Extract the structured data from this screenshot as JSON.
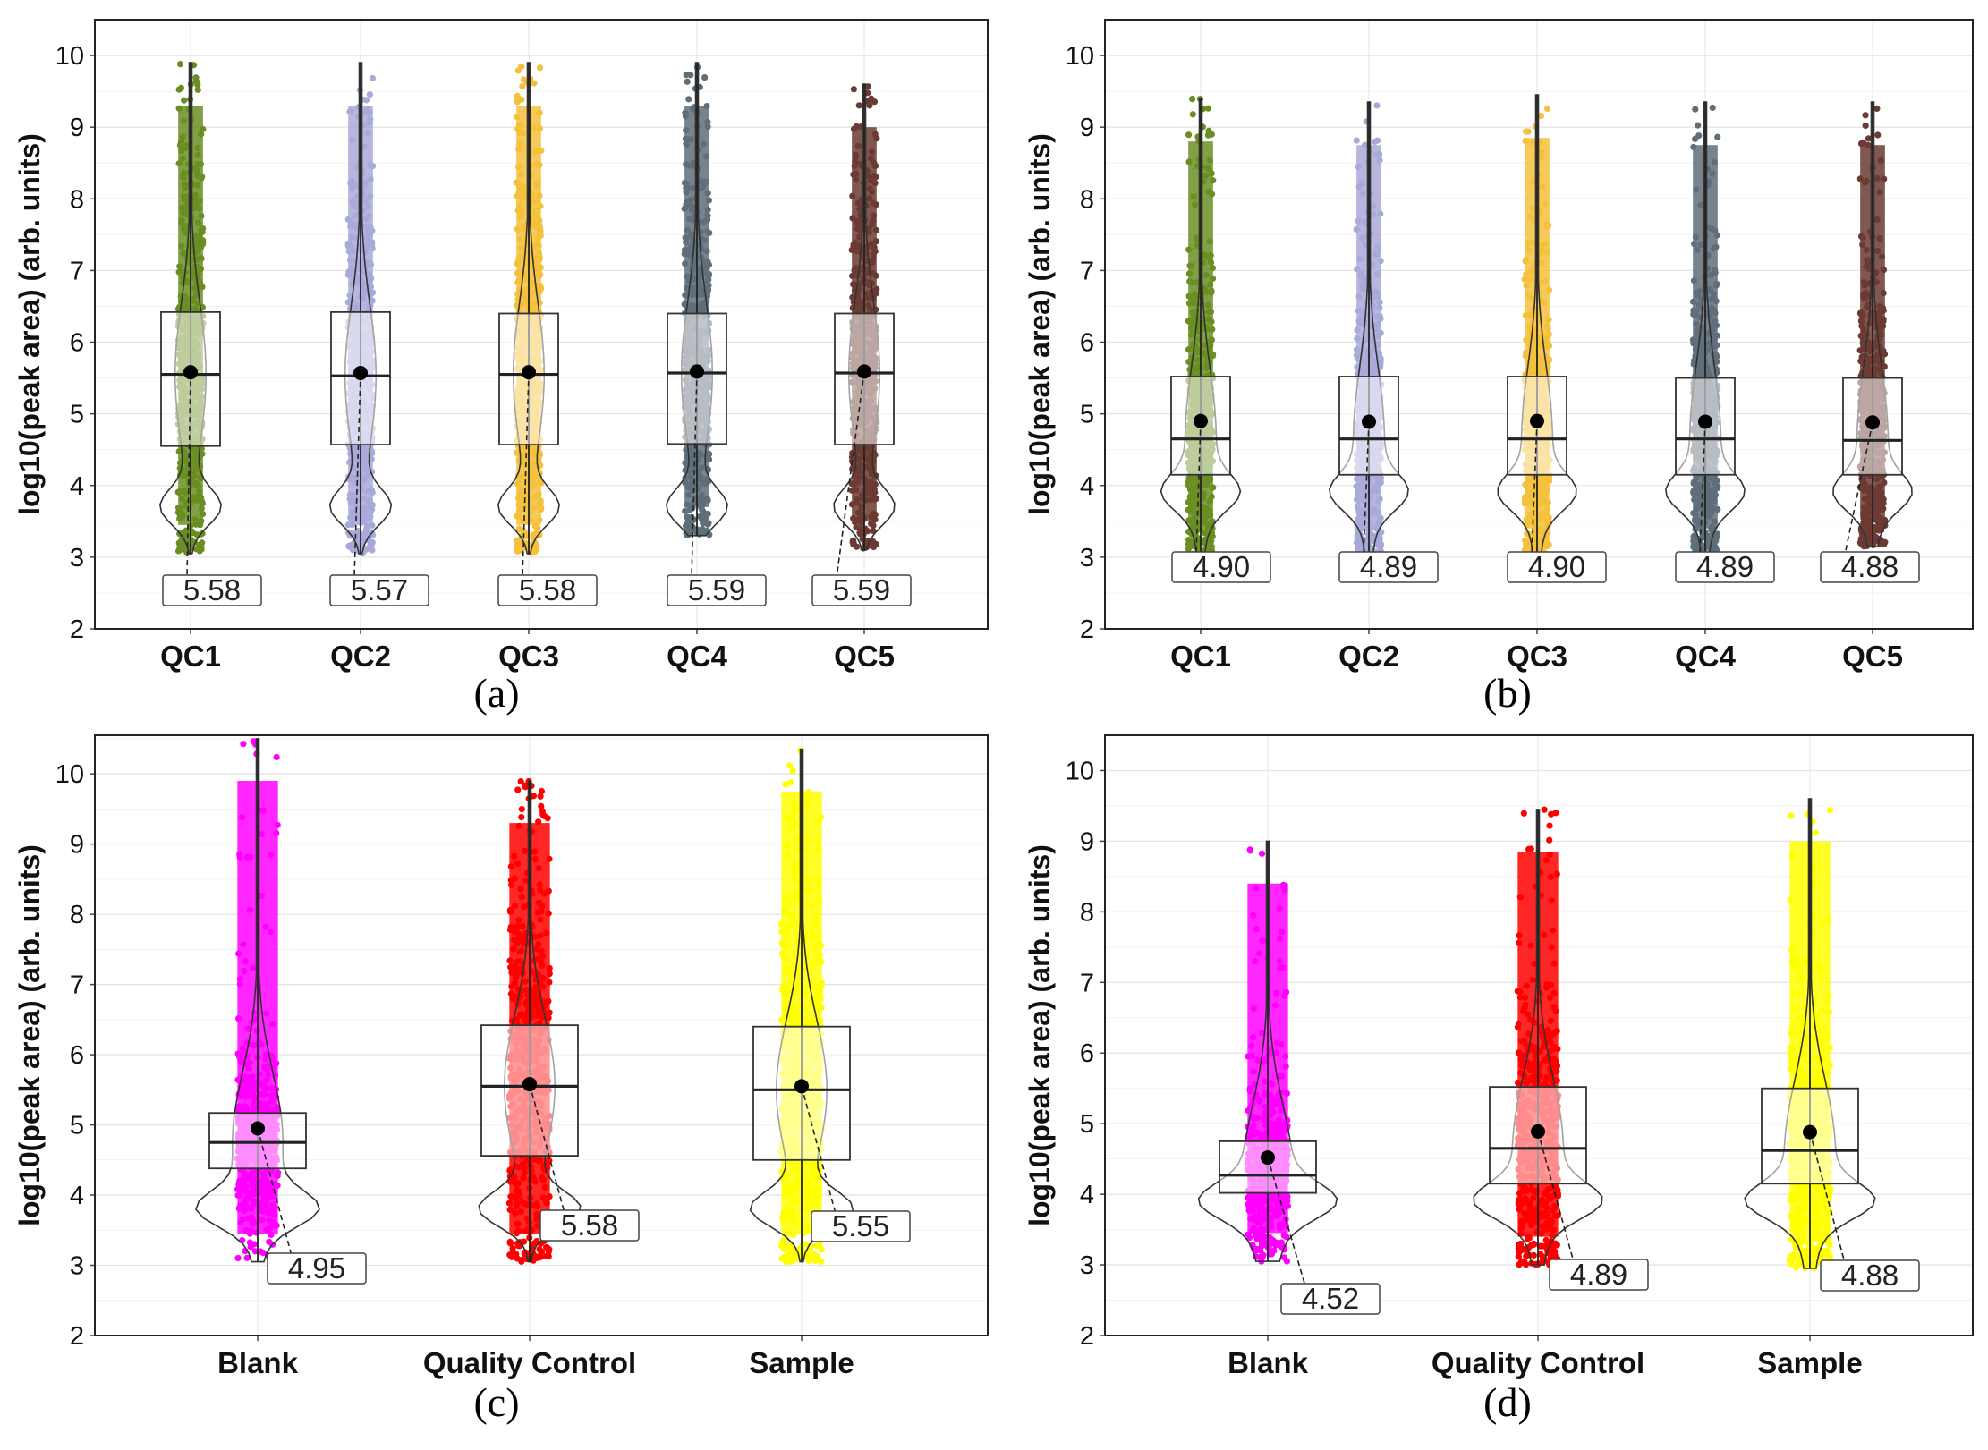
{
  "figure": {
    "panel_letters": [
      "(a)",
      "(b)",
      "(c)",
      "(d)"
    ]
  },
  "chart_data": [
    {
      "panel": "(a)",
      "type": "violin-box-jitter",
      "ylabel": "log10(peak area) (arb. units)",
      "ylim": [
        2,
        10.5
      ],
      "yticks": [
        2,
        3,
        4,
        5,
        6,
        7,
        8,
        9,
        10
      ],
      "categories": [
        "QC1",
        "QC2",
        "QC3",
        "QC4",
        "QC5"
      ],
      "colors": [
        "#6b8e23",
        "#a9a9d9",
        "#f5c13b",
        "#5f6f7a",
        "#6b3b33"
      ],
      "box": {
        "q1": [
          4.55,
          4.57,
          4.57,
          4.58,
          4.57
        ],
        "median": [
          5.55,
          5.53,
          5.55,
          5.57,
          5.57
        ],
        "q3": [
          6.42,
          6.42,
          6.4,
          6.4,
          6.4
        ]
      },
      "range": [
        [
          3.05,
          9.9
        ],
        [
          3.05,
          9.9
        ],
        [
          3.05,
          9.9
        ],
        [
          3.3,
          9.9
        ],
        [
          3.1,
          9.6
        ]
      ],
      "means": [
        5.58,
        5.57,
        5.58,
        5.59,
        5.59
      ],
      "mean_labels": [
        "5.58",
        "5.57",
        "5.58",
        "5.59",
        "5.59"
      ],
      "violin_peak": 3.7
    },
    {
      "panel": "(b)",
      "type": "violin-box-jitter",
      "ylabel": "log10(peak area) (arb. units)",
      "ylim": [
        2,
        10.5
      ],
      "yticks": [
        2,
        3,
        4,
        5,
        6,
        7,
        8,
        9,
        10
      ],
      "categories": [
        "QC1",
        "QC2",
        "QC3",
        "QC4",
        "QC5"
      ],
      "colors": [
        "#6b8e23",
        "#a9a9d9",
        "#f5c13b",
        "#5f6f7a",
        "#6b3b33"
      ],
      "box": {
        "q1": [
          4.15,
          4.15,
          4.15,
          4.15,
          4.15
        ],
        "median": [
          4.65,
          4.65,
          4.65,
          4.65,
          4.63
        ],
        "q3": [
          5.52,
          5.52,
          5.52,
          5.5,
          5.5
        ]
      },
      "range": [
        [
          2.95,
          9.4
        ],
        [
          3.0,
          9.35
        ],
        [
          3.0,
          9.45
        ],
        [
          3.0,
          9.35
        ],
        [
          3.15,
          9.35
        ]
      ],
      "means": [
        4.9,
        4.89,
        4.9,
        4.89,
        4.88
      ],
      "mean_labels": [
        "4.90",
        "4.89",
        "4.90",
        "4.89",
        "4.88"
      ],
      "violin_peak": 3.9
    },
    {
      "panel": "(c)",
      "type": "violin-box-jitter",
      "ylabel": "log10(peak area) (arb. units)",
      "ylim": [
        2,
        10.55
      ],
      "yticks": [
        2,
        3,
        4,
        5,
        6,
        7,
        8,
        9,
        10
      ],
      "categories": [
        "Blank",
        "Quality Control",
        "Sample"
      ],
      "colors": [
        "#ff00ff",
        "#ff0000",
        "#ffff00"
      ],
      "box": {
        "q1": [
          4.38,
          4.56,
          4.5
        ],
        "median": [
          4.75,
          5.55,
          5.5
        ],
        "q3": [
          5.17,
          6.42,
          6.4
        ]
      },
      "range": [
        [
          3.05,
          10.5
        ],
        [
          3.05,
          9.9
        ],
        [
          3.05,
          10.35
        ]
      ],
      "means": [
        4.95,
        5.58,
        5.55
      ],
      "mean_labels": [
        "4.95",
        "5.58",
        "5.55"
      ],
      "violin_peak": 3.8
    },
    {
      "panel": "(d)",
      "type": "violin-box-jitter",
      "ylabel": "log10(peak area) (arb. units)",
      "ylim": [
        2,
        10.5
      ],
      "yticks": [
        2,
        3,
        4,
        5,
        6,
        7,
        8,
        9,
        10
      ],
      "categories": [
        "Blank",
        "Quality Control",
        "Sample"
      ],
      "colors": [
        "#ff00ff",
        "#ff0000",
        "#ffff00"
      ],
      "box": {
        "q1": [
          4.02,
          4.15,
          4.15
        ],
        "median": [
          4.27,
          4.65,
          4.62
        ],
        "q3": [
          4.75,
          5.52,
          5.5
        ]
      },
      "range": [
        [
          3.05,
          9.0
        ],
        [
          3.0,
          9.45
        ],
        [
          2.95,
          9.6
        ]
      ],
      "means": [
        4.52,
        4.89,
        4.88
      ],
      "mean_labels": [
        "4.52",
        "4.89",
        "4.88"
      ],
      "violin_peak": 3.9
    }
  ]
}
